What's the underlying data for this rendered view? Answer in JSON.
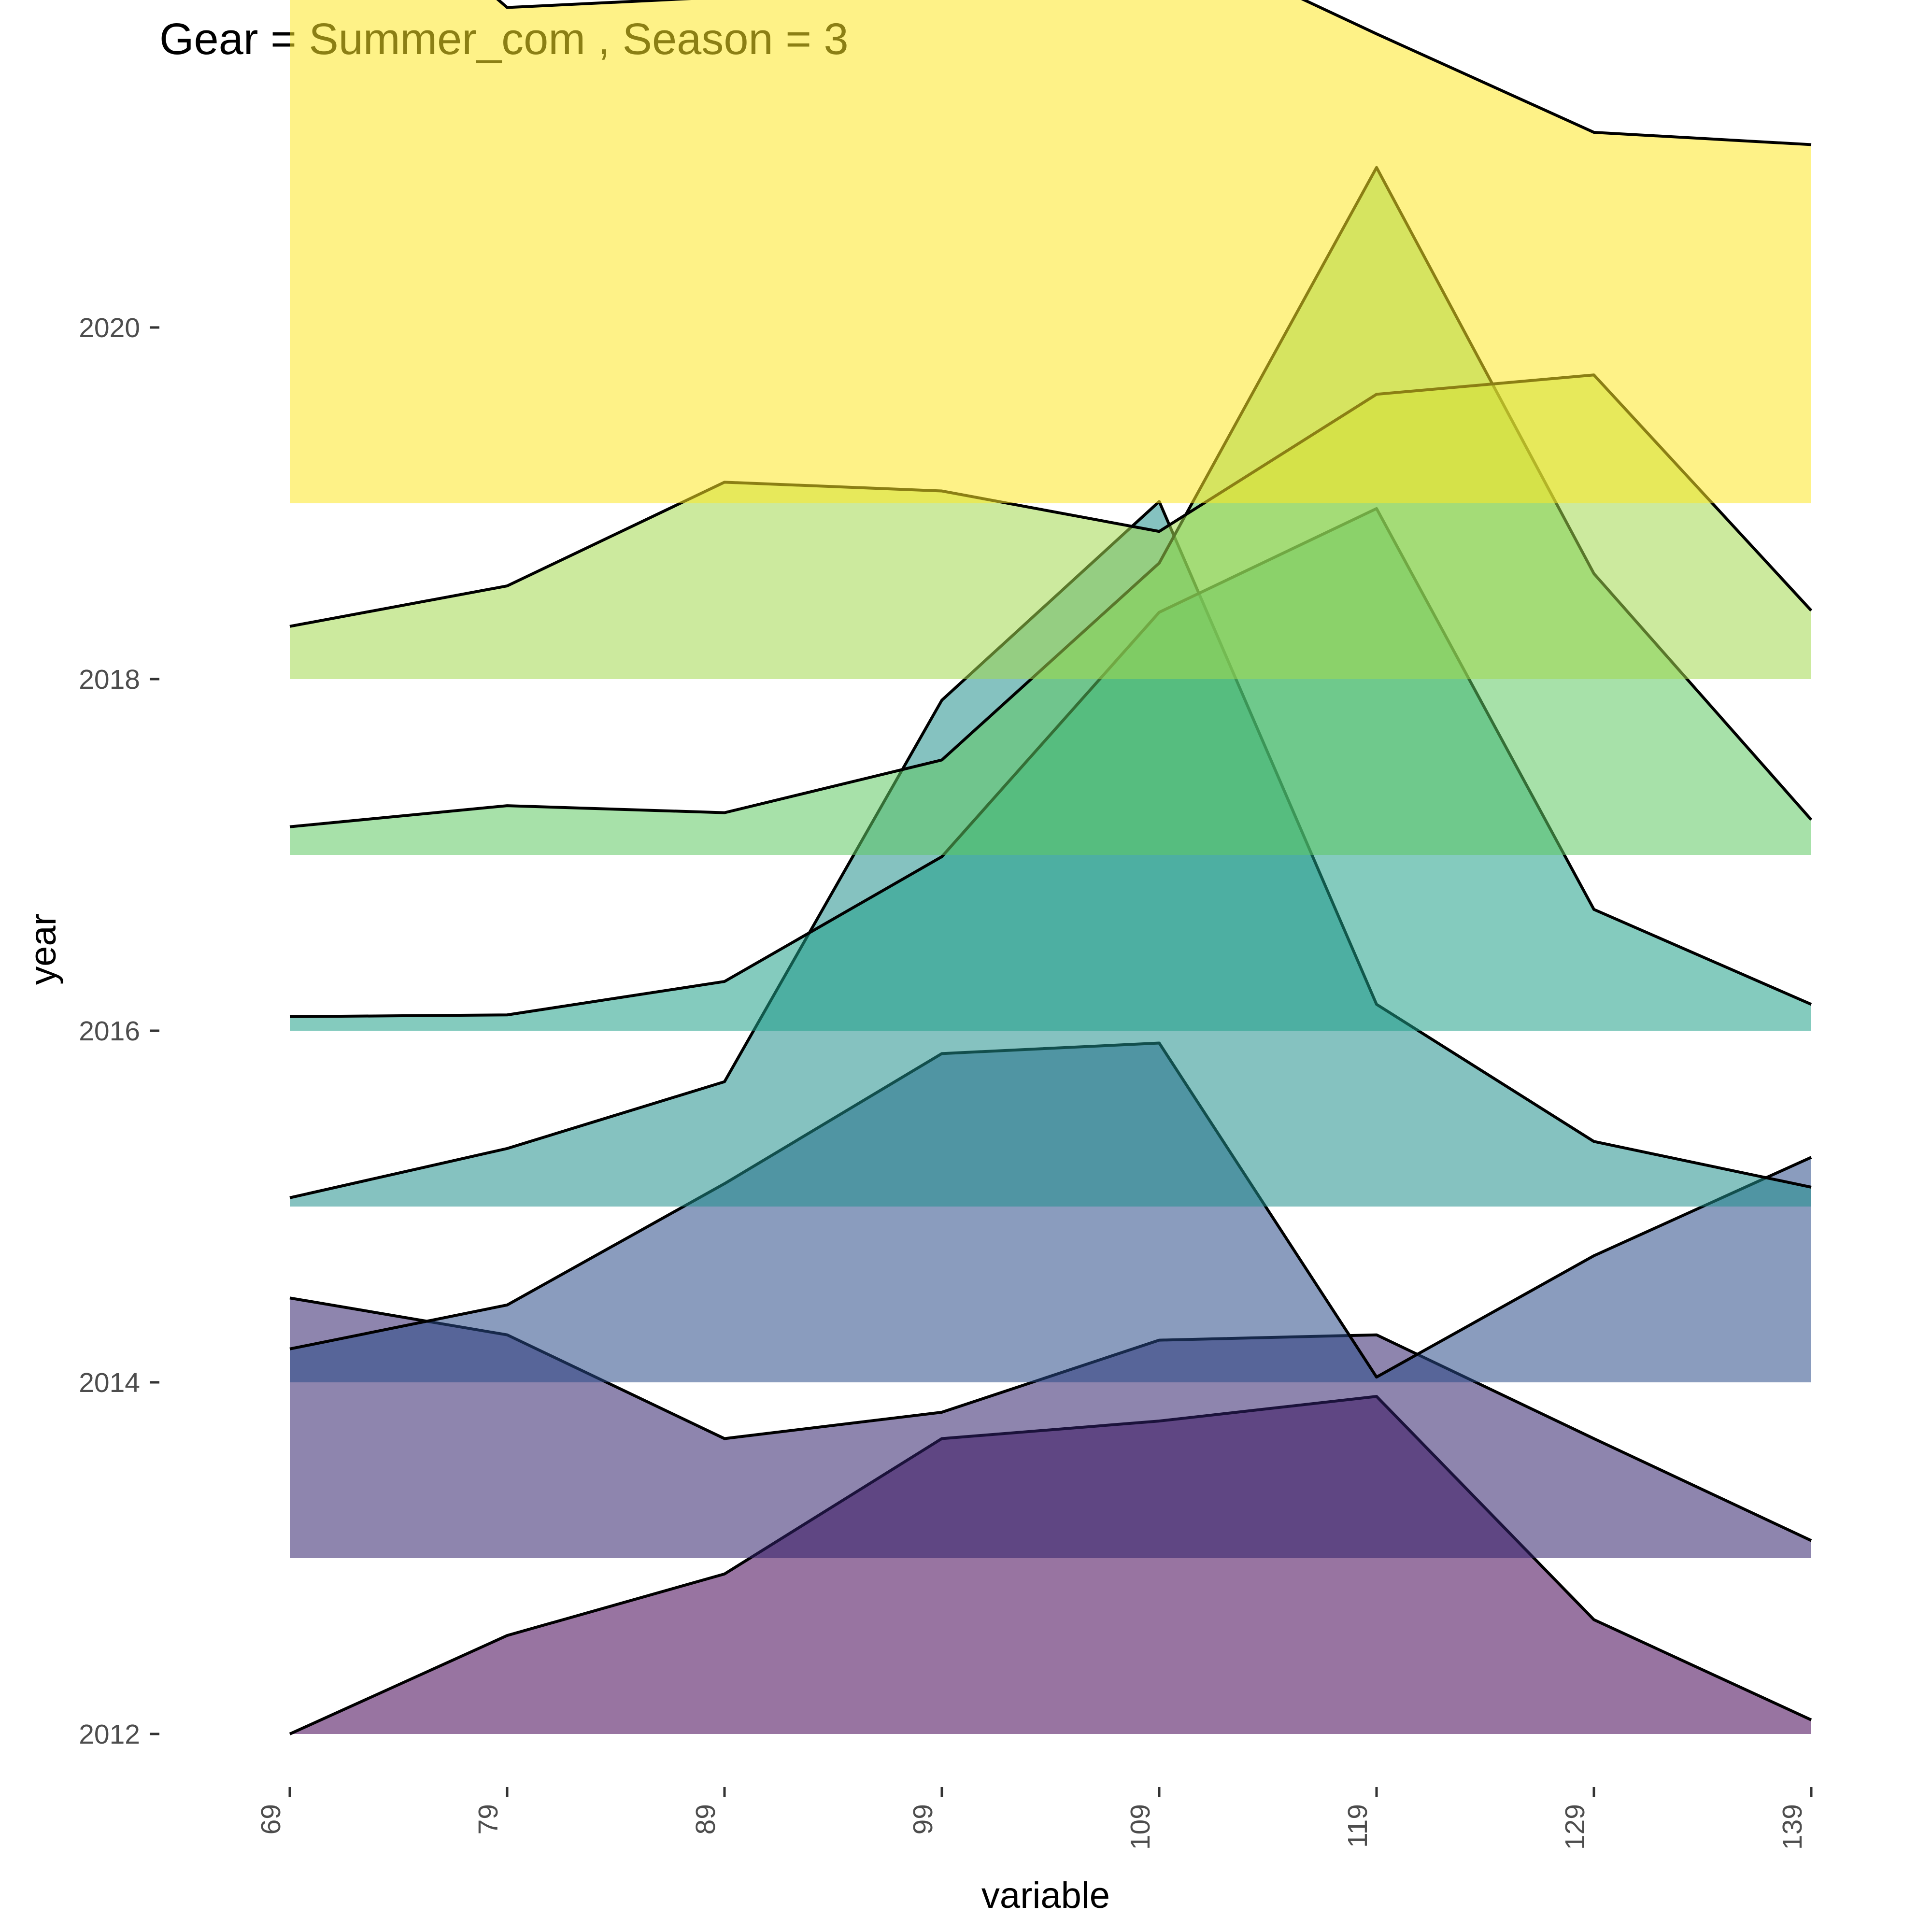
{
  "chart_data": {
    "type": "area",
    "title": "Gear = Summer_com , Season = 3",
    "xlabel": "variable",
    "ylabel": "year",
    "x": [
      69,
      79,
      89,
      99,
      109,
      119,
      129,
      139
    ],
    "y_ticks": [
      2012,
      2014,
      2016,
      2018,
      2020
    ],
    "grid": false,
    "legend": "none",
    "series": [
      {
        "year": 2012,
        "values": [
          0.0,
          0.56,
          0.91,
          1.68,
          1.78,
          1.92,
          0.65,
          0.08
        ],
        "color": "#440154"
      },
      {
        "year": 2013,
        "values": [
          1.48,
          1.27,
          0.68,
          0.83,
          1.24,
          1.27,
          0.68,
          0.1
        ],
        "color": "#31206b"
      },
      {
        "year": 2014,
        "values": [
          0.19,
          0.44,
          1.13,
          1.87,
          1.93,
          0.03,
          0.72,
          1.28
        ],
        "color": "#2a4a88"
      },
      {
        "year": 2015,
        "values": [
          0.05,
          0.33,
          0.71,
          2.88,
          4.01,
          1.15,
          0.37,
          0.11
        ],
        "color": "#21908c"
      },
      {
        "year": 2016,
        "values": [
          0.08,
          0.09,
          0.28,
          0.99,
          2.38,
          2.97,
          0.69,
          0.15
        ],
        "color": "#1fa188"
      },
      {
        "year": 2017,
        "values": [
          0.16,
          0.28,
          0.24,
          0.54,
          1.66,
          3.91,
          1.6,
          0.2
        ],
        "color": "#5ec962"
      },
      {
        "year": 2018,
        "values": [
          0.3,
          0.53,
          1.12,
          1.07,
          0.84,
          1.62,
          1.73,
          0.39
        ],
        "color": "#a3d94f"
      },
      {
        "year": 2019,
        "values": [
          3.89,
          2.82,
          2.88,
          3.89,
          3.25,
          2.67,
          2.11,
          2.04
        ],
        "color": "#fde725"
      }
    ]
  }
}
